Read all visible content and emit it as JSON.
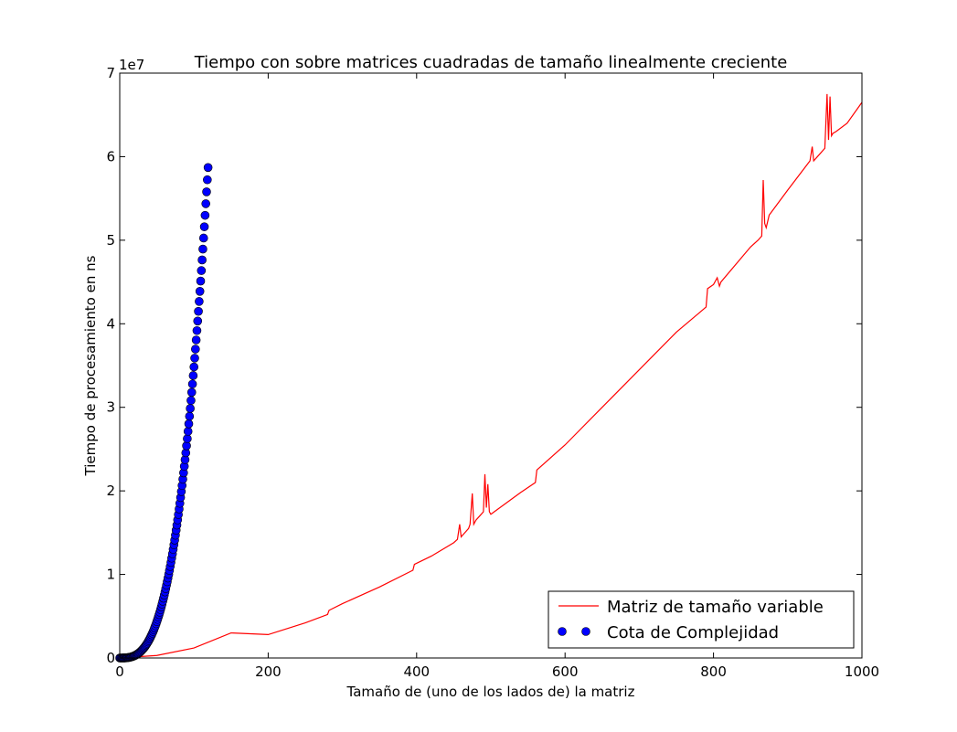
{
  "chart_data": {
    "type": "line",
    "title": "Tiempo con sobre matrices cuadradas de tamaño linealmente creciente",
    "xlabel": "Tamaño de (uno de los lados de) la matriz",
    "ylabel": "Tiempo de procesamiento en ns",
    "y_offset_label": "1e7",
    "xlim": [
      0,
      1000
    ],
    "ylim": [
      0,
      7
    ],
    "y_scale_note": "values in units of 1e7 ns",
    "x_ticks": [
      0,
      200,
      400,
      600,
      800,
      1000
    ],
    "x_tick_labels": [
      "0",
      "200",
      "400",
      "600",
      "800",
      "1000"
    ],
    "y_ticks": [
      0,
      1,
      2,
      3,
      4,
      5,
      6,
      7
    ],
    "y_tick_labels": [
      "0",
      "1",
      "2",
      "3",
      "4",
      "5",
      "6",
      "7"
    ],
    "grid": false,
    "legend_position": "bottom-right",
    "series": [
      {
        "name": "Matriz de tamaño variable",
        "style": "line",
        "color": "#ff0000",
        "x": [
          0,
          50,
          100,
          150,
          200,
          250,
          280,
          282,
          300,
          350,
          395,
          397,
          420,
          450,
          455,
          458,
          460,
          465,
          470,
          472,
          475,
          477,
          480,
          485,
          490,
          492,
          494,
          496,
          498,
          500,
          520,
          540,
          560,
          562,
          600,
          650,
          700,
          750,
          790,
          792,
          800,
          805,
          808,
          810,
          850,
          860,
          865,
          867,
          869,
          871,
          875,
          900,
          930,
          933,
          935,
          940,
          950,
          953,
          955,
          957,
          959,
          961,
          965,
          980,
          1000
        ],
        "y": [
          0.0,
          0.03,
          0.12,
          0.3,
          0.28,
          0.42,
          0.52,
          0.57,
          0.65,
          0.85,
          1.05,
          1.12,
          1.22,
          1.38,
          1.42,
          1.6,
          1.45,
          1.5,
          1.55,
          1.6,
          1.97,
          1.6,
          1.65,
          1.7,
          1.75,
          2.2,
          1.8,
          2.08,
          1.75,
          1.72,
          1.85,
          1.98,
          2.1,
          2.25,
          2.55,
          3.0,
          3.45,
          3.9,
          4.2,
          4.42,
          4.47,
          4.55,
          4.45,
          4.5,
          4.92,
          5.0,
          5.05,
          5.72,
          5.2,
          5.15,
          5.3,
          5.6,
          5.95,
          6.12,
          5.95,
          6.0,
          6.1,
          6.75,
          6.2,
          6.72,
          6.25,
          6.28,
          6.3,
          6.4,
          6.65
        ]
      },
      {
        "name": "Cota de Complejidad",
        "style": "markers",
        "color": "#0000ff",
        "x_start": 0,
        "x_end": 119,
        "x_step": 1,
        "y_formula": "c * x^3",
        "y_at_x_end": 5.87
      }
    ]
  }
}
